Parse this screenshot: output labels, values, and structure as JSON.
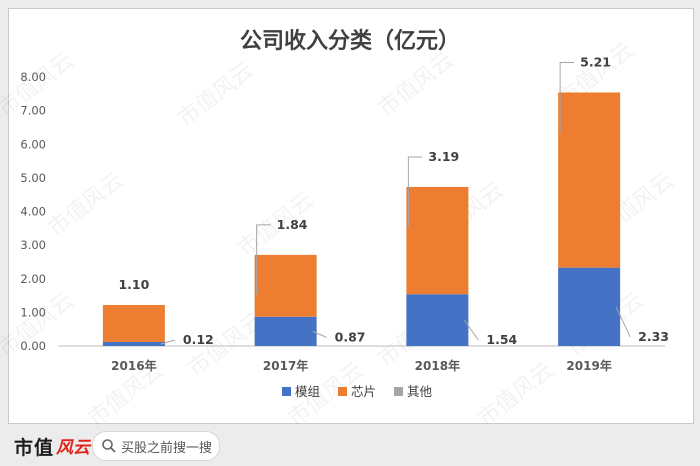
{
  "chart_data": {
    "type": "bar",
    "stacked": true,
    "title": "公司收入分类（亿元）",
    "categories": [
      "2016年",
      "2017年",
      "2018年",
      "2019年"
    ],
    "series": [
      {
        "name": "模组",
        "values": [
          0.12,
          0.87,
          1.54,
          2.33
        ],
        "color": "#4472c4"
      },
      {
        "name": "芯片",
        "values": [
          1.1,
          1.84,
          3.19,
          5.21
        ],
        "color": "#ed7d31"
      },
      {
        "name": "其他",
        "values": [
          0,
          0,
          0,
          0
        ],
        "color": "#a5a5a5"
      }
    ],
    "data_labels": {
      "模组": [
        "0.12",
        "0.87",
        "1.54",
        "2.33"
      ],
      "芯片": [
        "1.10",
        "1.84",
        "3.19",
        "5.21"
      ]
    },
    "y_ticks": [
      "0.00",
      "1.00",
      "2.00",
      "3.00",
      "4.00",
      "5.00",
      "6.00",
      "7.00",
      "8.00"
    ],
    "ylim": [
      0,
      8
    ],
    "grid": false,
    "legend_position": "bottom"
  },
  "footer": {
    "brand": "市值",
    "brand_mark": "风云",
    "search_placeholder": "买股之前搜一搜"
  },
  "watermark": "市值风云"
}
